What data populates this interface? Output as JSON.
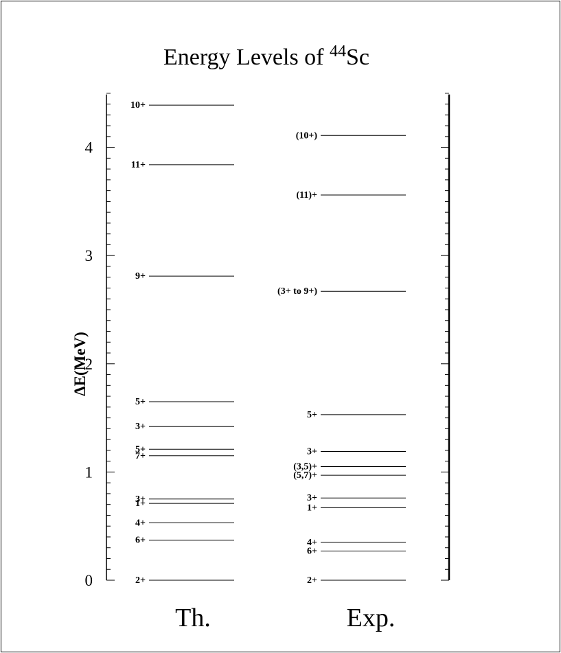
{
  "chart_data": {
    "type": "level-scheme",
    "title_main": "Energy Levels of ",
    "title_super": "44",
    "title_suffix": "Sc",
    "ylabel": "ΔE(MeV)",
    "ylim": [
      0,
      4.45
    ],
    "major_ticks": [
      0,
      1,
      2,
      3,
      4
    ],
    "minor_tick_step": 0.1,
    "columns": [
      {
        "name": "Th.",
        "levels": [
          {
            "energy": 0.0,
            "label": "2+"
          },
          {
            "energy": 0.37,
            "label": "6+"
          },
          {
            "energy": 0.53,
            "label": "4+"
          },
          {
            "energy": 0.71,
            "label": "1+"
          },
          {
            "energy": 0.75,
            "label": "3+"
          },
          {
            "energy": 1.15,
            "label": "7+"
          },
          {
            "energy": 1.21,
            "label": "5+"
          },
          {
            "energy": 1.42,
            "label": "3+"
          },
          {
            "energy": 1.65,
            "label": "5+"
          },
          {
            "energy": 2.81,
            "label": "9+"
          },
          {
            "energy": 3.84,
            "label": "11+"
          },
          {
            "energy": 4.39,
            "label": "10+"
          }
        ]
      },
      {
        "name": "Exp.",
        "levels": [
          {
            "energy": 0.0,
            "label": "2+"
          },
          {
            "energy": 0.27,
            "label": "6+"
          },
          {
            "energy": 0.35,
            "label": "4+"
          },
          {
            "energy": 0.67,
            "label": "1+"
          },
          {
            "energy": 0.76,
            "label": "3+"
          },
          {
            "energy": 0.97,
            "label": "(5,7)+"
          },
          {
            "energy": 1.05,
            "label": "(3,5)+"
          },
          {
            "energy": 1.19,
            "label": "3+"
          },
          {
            "energy": 1.53,
            "label": "5+"
          },
          {
            "energy": 2.67,
            "label": "(3+ to 9+)"
          },
          {
            "energy": 3.56,
            "label": "(11)+"
          },
          {
            "energy": 4.11,
            "label": "(10+)"
          }
        ]
      }
    ]
  }
}
